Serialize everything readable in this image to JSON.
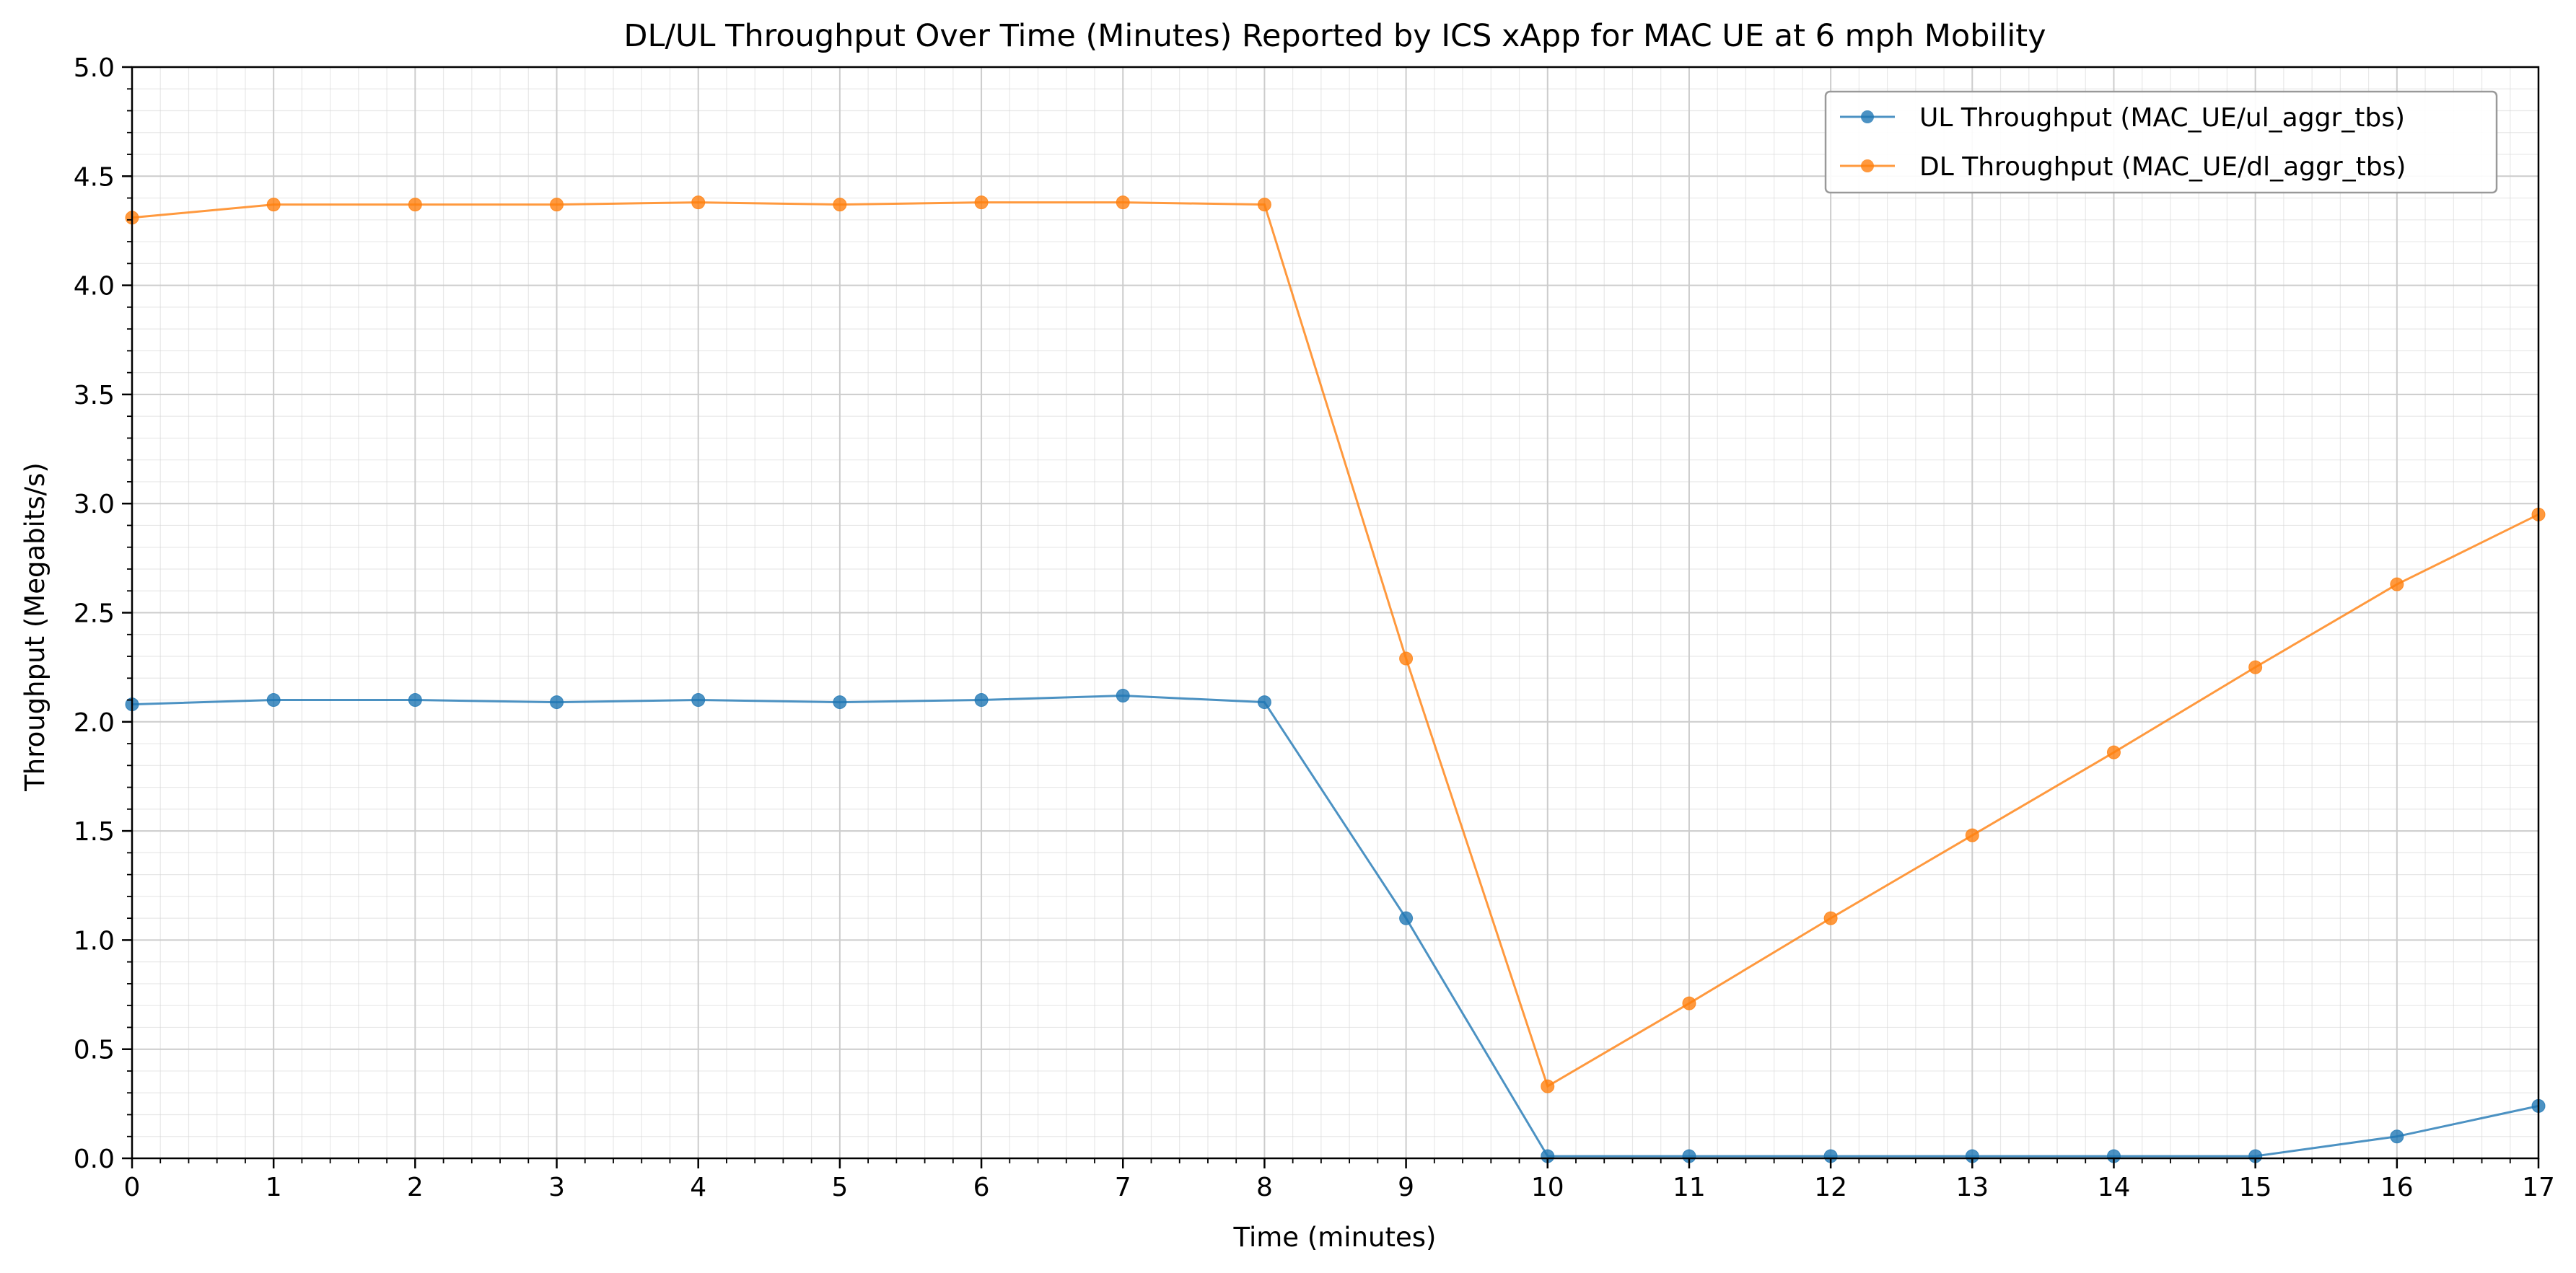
{
  "chart_data": {
    "type": "line",
    "title": "DL/UL Throughput Over Time (Minutes) Reported by ICS xApp for MAC UE at 6 mph Mobility",
    "xlabel": "Time (minutes)",
    "ylabel": "Throughput (Megabits/s)",
    "xlim": [
      0,
      17
    ],
    "ylim": [
      0,
      5
    ],
    "x_ticks": [
      0,
      1,
      2,
      3,
      4,
      5,
      6,
      7,
      8,
      9,
      10,
      11,
      12,
      13,
      14,
      15,
      16,
      17
    ],
    "y_ticks": [
      "0.0",
      "0.5",
      "1.0",
      "1.5",
      "2.0",
      "2.5",
      "3.0",
      "3.5",
      "4.0",
      "4.5",
      "5.0"
    ],
    "grid": true,
    "legend_position": "top-right",
    "x": [
      0,
      1,
      2,
      3,
      4,
      5,
      6,
      7,
      8,
      9,
      10,
      11,
      12,
      13,
      14,
      15,
      16,
      17
    ],
    "series": [
      {
        "name": "UL Throughput (MAC_UE/ul_aggr_tbs)",
        "color": "#1f77b4",
        "values": [
          2.08,
          2.1,
          2.1,
          2.09,
          2.1,
          2.09,
          2.1,
          2.12,
          2.09,
          1.1,
          0.01,
          0.01,
          0.01,
          0.01,
          0.01,
          0.01,
          0.1,
          0.24
        ]
      },
      {
        "name": "DL Throughput (MAC_UE/dl_aggr_tbs)",
        "color": "#ff7f0e",
        "values": [
          4.31,
          4.37,
          4.37,
          4.37,
          4.38,
          4.37,
          4.38,
          4.38,
          4.37,
          2.29,
          0.33,
          0.71,
          1.1,
          1.48,
          1.86,
          2.25,
          2.63,
          2.95
        ]
      }
    ]
  }
}
